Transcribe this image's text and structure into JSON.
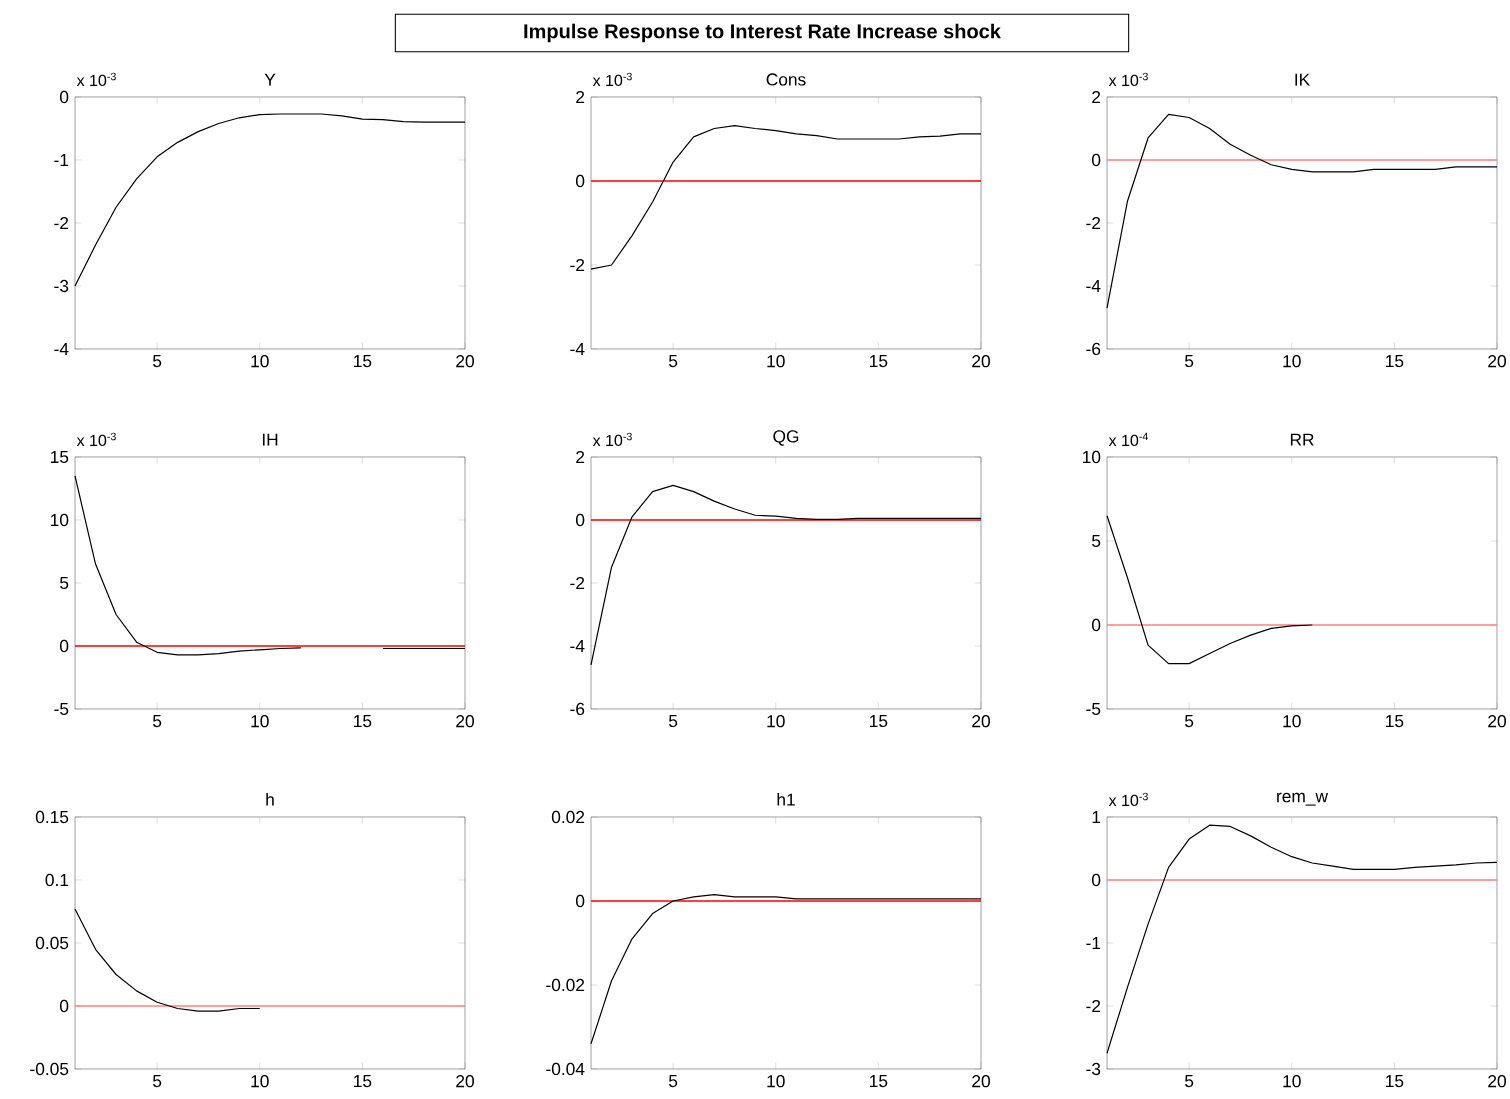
{
  "chart_data": [
    {
      "type": "other",
      "title": "Impulse Response to Interest Rate Increase shock"
    },
    {
      "type": "line",
      "title": "Y",
      "annotations": [
        "x 10$^{-3}$"
      ],
      "x": [
        1,
        2,
        3,
        4,
        5,
        6,
        7,
        8,
        9,
        10,
        11,
        12,
        13,
        14,
        15,
        16,
        17,
        18,
        19,
        20
      ],
      "xlim": [
        1,
        20
      ],
      "xticks": [
        5,
        10,
        15,
        20
      ],
      "ylim": [
        -4,
        0
      ],
      "yticks": [
        -4,
        -3,
        -2,
        -1,
        0
      ],
      "line_style": "solid",
      "series": [
        {
          "color": "#000000",
          "values": [
            -3.0,
            -2.35,
            -1.75,
            -1.3,
            -0.95,
            -0.72,
            -0.55,
            -0.42,
            -0.33,
            -0.28,
            -0.27,
            -0.27,
            -0.27,
            -0.3,
            -0.35,
            -0.36,
            -0.39,
            -0.4,
            -0.4,
            -0.4
          ]
        }
      ]
    },
    {
      "type": "line",
      "title": "Cons",
      "annotations": [
        "x 10$^{-3}$"
      ],
      "x": [
        1,
        2,
        3,
        4,
        5,
        6,
        7,
        8,
        9,
        10,
        11,
        12,
        13,
        14,
        15,
        16,
        17,
        18,
        19,
        20
      ],
      "xlim": [
        1,
        20
      ],
      "xticks": [
        5,
        10,
        15,
        20
      ],
      "ylim": [
        -4,
        2
      ],
      "yticks": [
        -4,
        -2,
        0,
        2
      ],
      "line_style": "solid",
      "ref_lines": [
        {
          "axis": "y",
          "value": 0,
          "color": "#ff0000"
        }
      ],
      "series": [
        {
          "color": "#000000",
          "values": [
            -2.1,
            -2.0,
            -1.3,
            -0.5,
            0.45,
            1.05,
            1.25,
            1.32,
            1.25,
            1.2,
            1.12,
            1.08,
            1.0,
            1.0,
            1.0,
            1.0,
            1.05,
            1.07,
            1.12,
            1.12
          ]
        }
      ]
    },
    {
      "type": "line",
      "title": "IK",
      "annotations": [
        "x 10$^{-3}$"
      ],
      "x": [
        1,
        2,
        3,
        4,
        5,
        6,
        7,
        8,
        9,
        10,
        11,
        12,
        13,
        14,
        15,
        16,
        17,
        18,
        19,
        20
      ],
      "xlim": [
        1,
        20
      ],
      "xticks": [
        5,
        10,
        15,
        20
      ],
      "ylim": [
        -6,
        2
      ],
      "yticks": [
        -6,
        -4,
        -2,
        0,
        2
      ],
      "line_style": "solid",
      "ref_lines": [
        {
          "axis": "y",
          "value": 0,
          "color": "#ff8080"
        }
      ],
      "series": [
        {
          "color": "#000000",
          "values": [
            -4.7,
            -1.3,
            0.7,
            1.45,
            1.35,
            1.0,
            0.5,
            0.15,
            -0.15,
            -0.3,
            -0.38,
            -0.38,
            -0.38,
            -0.3,
            -0.3,
            -0.3,
            -0.3,
            -0.22,
            -0.22,
            -0.22
          ]
        }
      ]
    },
    {
      "type": "line",
      "title": "IH",
      "annotations": [
        "x 10$^{-3}$"
      ],
      "x": [
        1,
        2,
        3,
        4,
        5,
        6,
        7,
        8,
        9,
        10,
        11,
        12,
        13,
        14,
        15,
        16,
        17,
        18,
        19,
        20
      ],
      "xlim": [
        1,
        20
      ],
      "xticks": [
        5,
        10,
        15,
        20
      ],
      "ylim": [
        -5,
        15
      ],
      "yticks": [
        -5,
        0,
        5,
        10,
        15
      ],
      "line_style": "solid",
      "ref_lines": [
        {
          "axis": "y",
          "value": 0,
          "color": "#ff0000"
        }
      ],
      "series": [
        {
          "color": "#000000",
          "values": [
            13.5,
            6.5,
            2.5,
            0.3,
            -0.5,
            -0.7,
            -0.7,
            -0.6,
            -0.4,
            -0.3,
            -0.2,
            -0.15,
            null,
            null,
            null,
            -0.2,
            -0.2,
            -0.2,
            -0.2,
            -0.2
          ]
        }
      ]
    },
    {
      "type": "line",
      "title": "QG",
      "annotations": [
        "x 10$^{-3}$"
      ],
      "x": [
        1,
        2,
        3,
        4,
        5,
        6,
        7,
        8,
        9,
        10,
        11,
        12,
        13,
        14,
        15,
        16,
        17,
        18,
        19,
        20
      ],
      "xlim": [
        1,
        20
      ],
      "xticks": [
        5,
        10,
        15,
        20
      ],
      "ylim": [
        -6,
        2
      ],
      "yticks": [
        -6,
        -4,
        -2,
        0,
        2
      ],
      "line_style": "solid",
      "ref_lines": [
        {
          "axis": "y",
          "value": 0,
          "color": "#ff0000"
        }
      ],
      "series": [
        {
          "color": "#000000",
          "values": [
            -4.6,
            -1.5,
            0.1,
            0.9,
            1.1,
            0.9,
            0.6,
            0.35,
            0.15,
            0.12,
            0.05,
            0.02,
            0.02,
            0.05,
            0.05,
            0.05,
            0.05,
            0.05,
            0.05,
            0.05
          ]
        }
      ]
    },
    {
      "type": "line",
      "title": "RR",
      "annotations": [
        "x 10$^{-4}$"
      ],
      "x": [
        1,
        2,
        3,
        4,
        5,
        6,
        7,
        8,
        9,
        10,
        11
      ],
      "xlim": [
        1,
        20
      ],
      "xticks": [
        5,
        10,
        15,
        20
      ],
      "ylim": [
        -5,
        10
      ],
      "yticks": [
        -5,
        0,
        5,
        10
      ],
      "line_style": "solid",
      "ref_lines": [
        {
          "axis": "y",
          "value": 0,
          "color": "#ff8080"
        }
      ],
      "series": [
        {
          "color": "#000000",
          "values": [
            6.5,
            2.8,
            -1.2,
            -2.3,
            -2.3,
            -1.7,
            -1.1,
            -0.6,
            -0.2,
            -0.05,
            0
          ]
        }
      ]
    },
    {
      "type": "line",
      "title": "h",
      "x": [
        1,
        2,
        3,
        4,
        5,
        6,
        7,
        8,
        9,
        10
      ],
      "xlim": [
        1,
        20
      ],
      "xticks": [
        5,
        10,
        15,
        20
      ],
      "ylim": [
        -0.05,
        0.15
      ],
      "yticks": [
        -0.05,
        0,
        0.05,
        0.1,
        0.15
      ],
      "line_style": "solid",
      "ref_lines": [
        {
          "axis": "y",
          "value": 0,
          "color": "#ff8080"
        }
      ],
      "series": [
        {
          "color": "#000000",
          "values": [
            0.077,
            0.045,
            0.025,
            0.012,
            0.003,
            -0.002,
            -0.004,
            -0.004,
            -0.002,
            -0.002
          ]
        }
      ]
    },
    {
      "type": "line",
      "title": "h1",
      "x": [
        1,
        2,
        3,
        4,
        5,
        6,
        7,
        8,
        9,
        10,
        11,
        12,
        13,
        14,
        15,
        16,
        17,
        18,
        19,
        20
      ],
      "xlim": [
        1,
        20
      ],
      "xticks": [
        5,
        10,
        15,
        20
      ],
      "ylim": [
        -0.04,
        0.02
      ],
      "yticks": [
        -0.04,
        -0.02,
        0,
        0.02
      ],
      "line_style": "solid",
      "ref_lines": [
        {
          "axis": "y",
          "value": 0,
          "color": "#ff0000"
        }
      ],
      "series": [
        {
          "color": "#000000",
          "values": [
            -0.034,
            -0.019,
            -0.009,
            -0.003,
            0,
            0.001,
            0.0015,
            0.001,
            0.001,
            0.001,
            0.0005,
            0.0005,
            0.0005,
            0.0005,
            0.0005,
            0.0005,
            0.0005,
            0.0005,
            0.0005,
            0.0005
          ]
        }
      ]
    },
    {
      "type": "line",
      "title": "rem_w",
      "annotations": [
        "x 10$^{-3}$"
      ],
      "x": [
        1,
        2,
        3,
        4,
        5,
        6,
        7,
        8,
        9,
        10,
        11,
        12,
        13,
        14,
        15,
        16,
        17,
        18,
        19,
        20
      ],
      "xlim": [
        1,
        20
      ],
      "xticks": [
        5,
        10,
        15,
        20
      ],
      "ylim": [
        -3,
        1
      ],
      "yticks": [
        -3,
        -2,
        -1,
        0,
        1
      ],
      "line_style": "solid",
      "ref_lines": [
        {
          "axis": "y",
          "value": 0,
          "color": "#ff8080"
        }
      ],
      "series": [
        {
          "color": "#000000",
          "values": [
            -2.75,
            -1.7,
            -0.7,
            0.2,
            0.65,
            0.87,
            0.85,
            0.7,
            0.52,
            0.37,
            0.27,
            0.22,
            0.17,
            0.17,
            0.17,
            0.2,
            0.22,
            0.24,
            0.27,
            0.28
          ]
        }
      ]
    }
  ]
}
